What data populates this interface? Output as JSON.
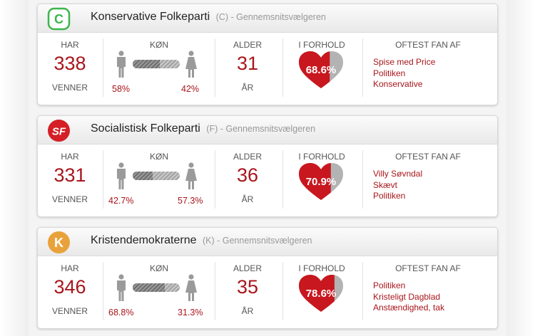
{
  "colors": {
    "accent": "#a8161c",
    "heart": "#c8171e",
    "label": "#555555"
  },
  "labels": {
    "har": "HAR",
    "venner": "VENNER",
    "kon": "KØN",
    "alder": "ALDER",
    "aar": "ÅR",
    "i_forhold": "I FORHOLD",
    "oftest_fan_af": "OFTEST FAN AF"
  },
  "cards": [
    {
      "logo": {
        "letter": "C",
        "shape": "rounded-square",
        "color": "#3cb54a"
      },
      "name": "Konservative Folkeparti",
      "meta": "(C) - Gennemsnitsvælgeren",
      "friends": "338",
      "male_pct": "58%",
      "female_pct": "42%",
      "male_fraction": 0.58,
      "age": "31",
      "relationship_pct": "68.6%",
      "relationship_fraction": 0.686,
      "fans": [
        "Spise med Price",
        "Politiken",
        "Konservative"
      ]
    },
    {
      "logo": {
        "letter": "SF",
        "shape": "circle",
        "color": "#d41f26"
      },
      "name": "Socialistisk Folkeparti",
      "meta": "(F) - Gennemsnitsvælgeren",
      "friends": "331",
      "male_pct": "42.7%",
      "female_pct": "57.3%",
      "male_fraction": 0.427,
      "age": "36",
      "relationship_pct": "70.9%",
      "relationship_fraction": 0.709,
      "fans": [
        "Villy Søvndal",
        "Skævt",
        "Politiken"
      ]
    },
    {
      "logo": {
        "letter": "K",
        "shape": "circle",
        "color": "#e9a23b"
      },
      "name": "Kristendemokraterne",
      "meta": "(K) - Gennemsnitsvælgeren",
      "friends": "346",
      "male_pct": "68.8%",
      "female_pct": "31.3%",
      "male_fraction": 0.688,
      "age": "35",
      "relationship_pct": "78.6%",
      "relationship_fraction": 0.786,
      "fans": [
        "Politiken",
        "Kristeligt Dagblad",
        "Anstændighed, tak"
      ]
    }
  ]
}
